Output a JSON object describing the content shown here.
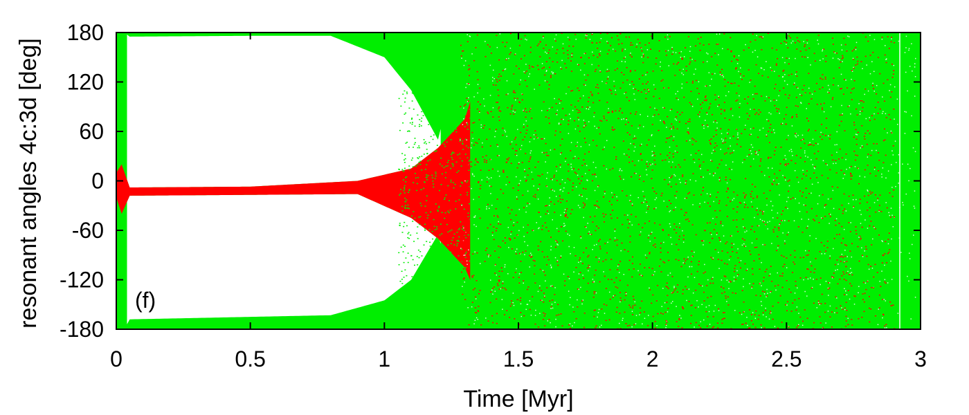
{
  "chart_data": {
    "type": "scatter",
    "title": "",
    "xlabel": "Time [Myr]",
    "ylabel": "resonant angles 4c:3d [deg]",
    "panel_label": "(f)",
    "xlim": [
      0,
      3
    ],
    "ylim": [
      -180,
      180
    ],
    "x_ticks": [
      0,
      0.5,
      1,
      1.5,
      2,
      2.5,
      3
    ],
    "x_tick_labels": [
      "0",
      "0.5",
      "1",
      "1.5",
      "2",
      "2.5",
      "3"
    ],
    "y_ticks": [
      180,
      120,
      60,
      0,
      -60,
      -120,
      -180
    ],
    "y_tick_labels": [
      "180",
      "120",
      "60",
      "0",
      "-60",
      "-120",
      "-180"
    ],
    "grid": false,
    "legend": "none",
    "series": [
      {
        "color": "#00ee00",
        "description_points": [
          {
            "x": 0.0,
            "y_upper": 180,
            "y_lower": -180
          },
          {
            "x": 0.03,
            "y_upper": 180,
            "y_lower": -180
          },
          {
            "x": 0.05,
            "y_upper": 175,
            "y_lower": -168
          },
          {
            "x": 0.5,
            "y_upper": 176,
            "y_lower": -165
          },
          {
            "x": 0.8,
            "y_upper": 176,
            "y_lower": -163
          },
          {
            "x": 1.0,
            "y_upper": 150,
            "y_lower": -145
          },
          {
            "x": 1.1,
            "y_upper": 110,
            "y_lower": -120
          },
          {
            "x": 1.2,
            "y_upper": 50,
            "y_lower": -65
          },
          {
            "x": 1.3,
            "y_upper": 180,
            "y_lower": -180
          },
          {
            "x": 3.0,
            "y_upper": 180,
            "y_lower": -180
          }
        ]
      },
      {
        "color": "#ff0000",
        "description_points": [
          {
            "x": 0.0,
            "y_center": -5,
            "half_width": 15
          },
          {
            "x": 0.02,
            "y_center": -10,
            "half_width": 30
          },
          {
            "x": 0.05,
            "y_center": -13,
            "half_width": 5
          },
          {
            "x": 0.5,
            "y_center": -12,
            "half_width": 5
          },
          {
            "x": 0.9,
            "y_center": -8,
            "half_width": 8
          },
          {
            "x": 1.1,
            "y_center": -15,
            "half_width": 30
          },
          {
            "x": 1.2,
            "y_center": -15,
            "half_width": 55
          },
          {
            "x": 1.3,
            "y_center": -15,
            "half_width": 90
          },
          {
            "x": 1.4,
            "y_center": 0,
            "half_width": 180
          },
          {
            "x": 3.0,
            "y_center": 0,
            "half_width": 180
          }
        ]
      }
    ]
  },
  "colors": {
    "green": "#00ee00",
    "red": "#ff0000",
    "axis": "#000000"
  }
}
